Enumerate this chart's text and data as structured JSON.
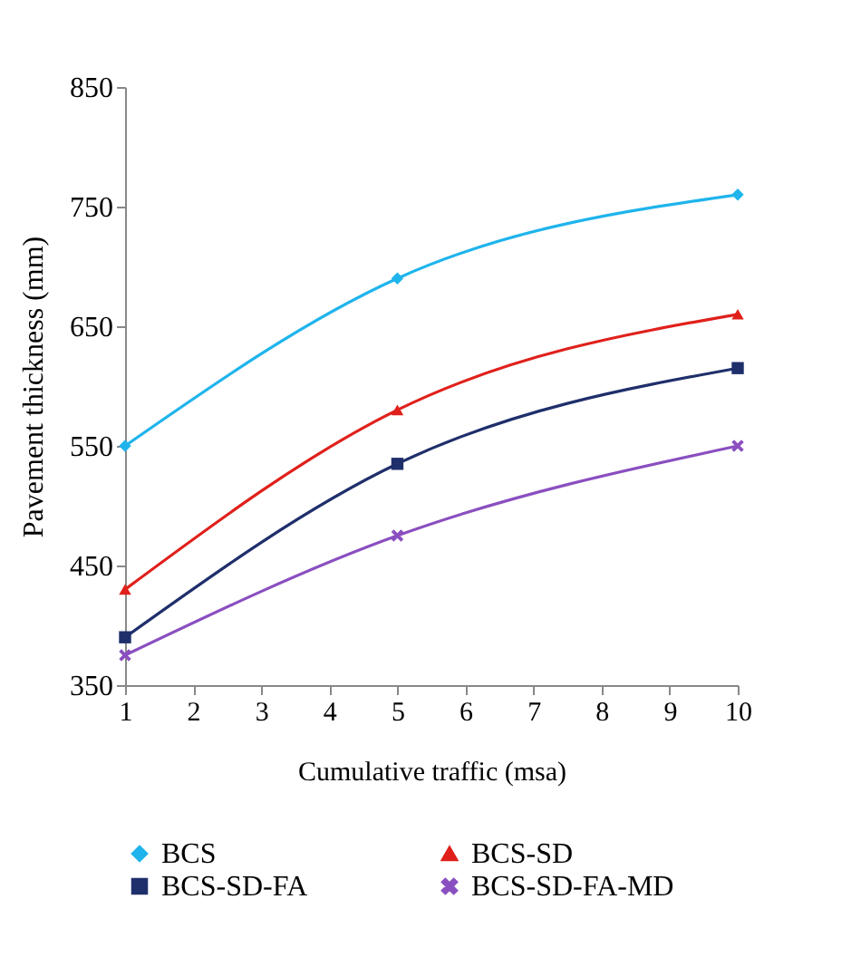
{
  "chart_data": {
    "type": "line",
    "xlabel": "Cumulative traffic (msa)",
    "ylabel": "Pavement thickness (mm)",
    "x": [
      1,
      5,
      10
    ],
    "series": [
      {
        "name": "BCS",
        "color": "#1fb4ec",
        "marker": "diamond",
        "values": [
          550,
          690,
          760
        ]
      },
      {
        "name": "BCS-SD",
        "color": "#e0201b",
        "marker": "triangle",
        "values": [
          430,
          580,
          660
        ]
      },
      {
        "name": "BCS-SD-FA",
        "color": "#1f2f6b",
        "marker": "square",
        "values": [
          390,
          535,
          615
        ]
      },
      {
        "name": "BCS-SD-FA-MD",
        "color": "#8a4fc0",
        "marker": "cross",
        "values": [
          375,
          475,
          550
        ]
      }
    ],
    "xlim": [
      1,
      10
    ],
    "xticks": [
      1,
      2,
      3,
      4,
      5,
      6,
      7,
      8,
      9,
      10
    ],
    "ylim": [
      350,
      850
    ],
    "yticks": [
      350,
      450,
      550,
      650,
      750,
      850
    ],
    "grid": false,
    "legend": "bottom",
    "line_style": "solid"
  }
}
